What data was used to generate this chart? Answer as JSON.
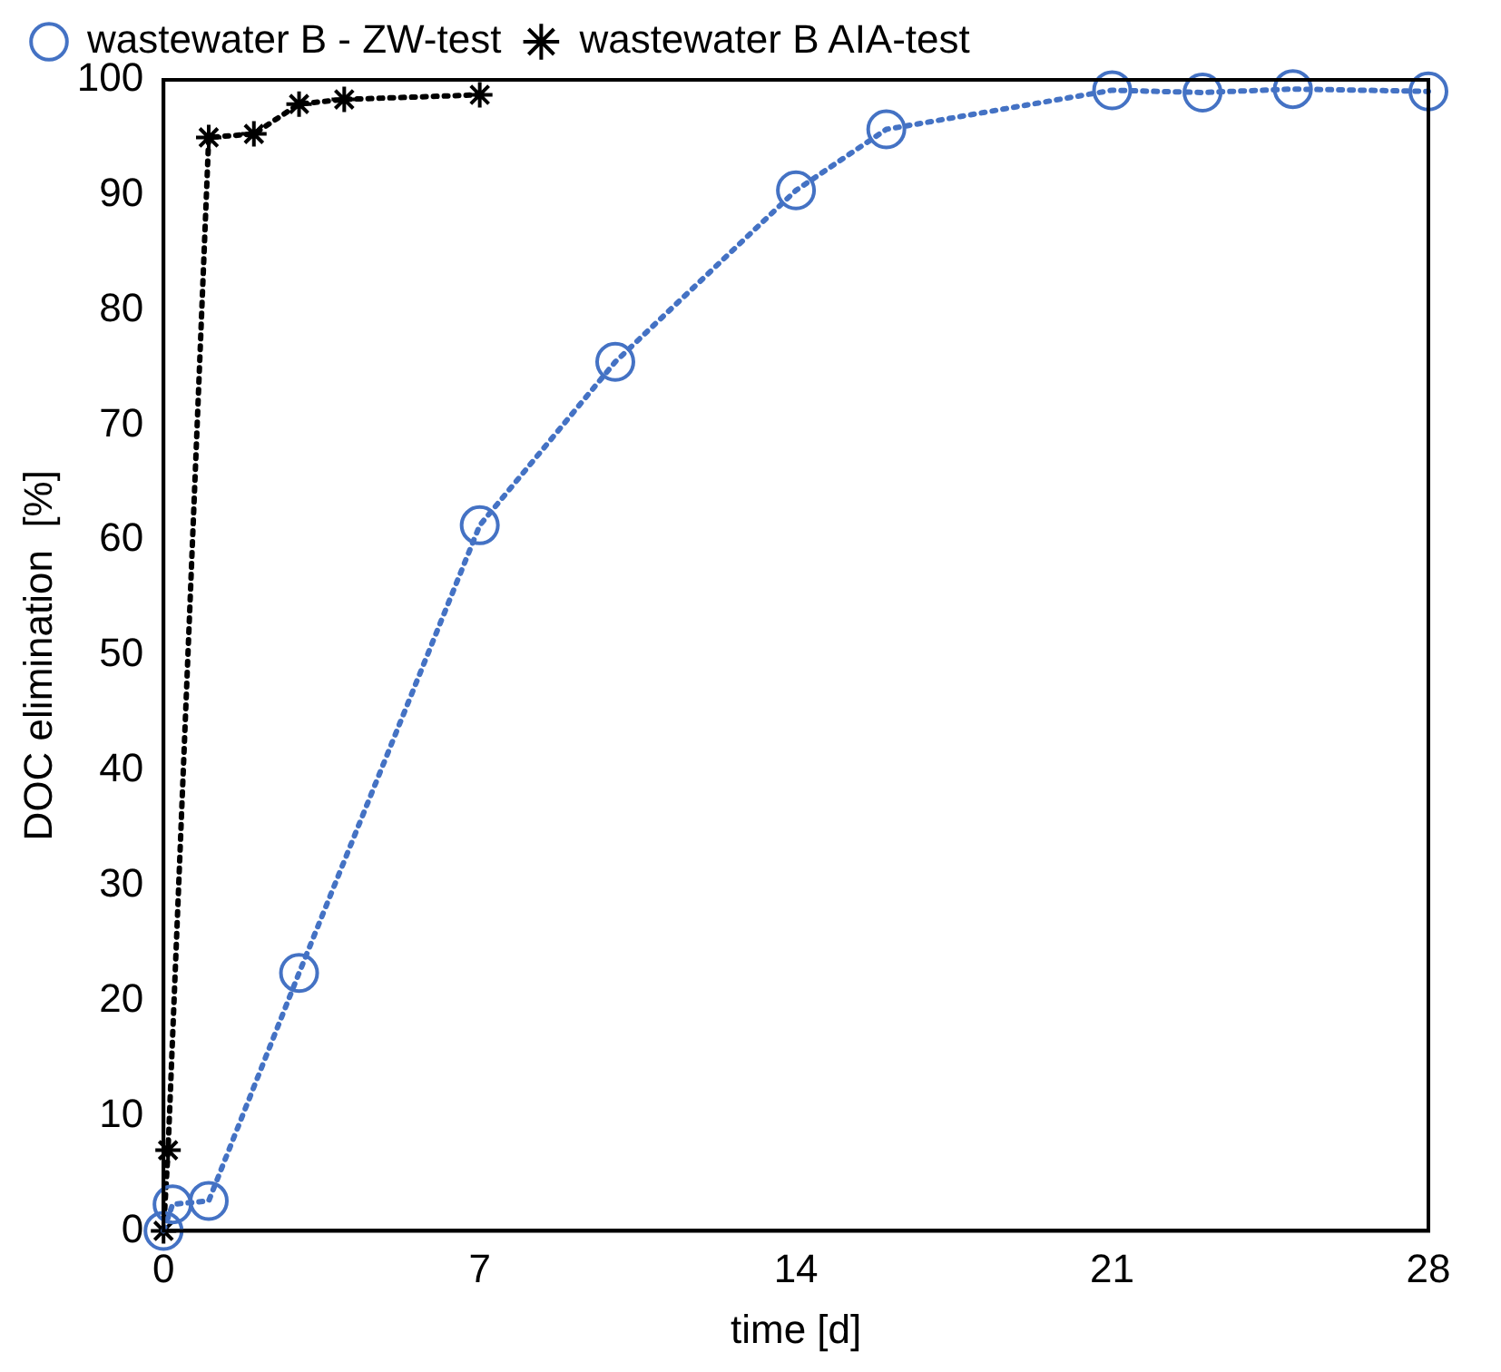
{
  "chart_data": {
    "type": "line",
    "xlabel": "time [d]",
    "ylabel": "DOC elimination  [%]",
    "xlim": [
      0,
      28
    ],
    "xticks": [
      0,
      7,
      14,
      21,
      28
    ],
    "ylim": [
      0,
      100
    ],
    "yticks": [
      0,
      10,
      20,
      30,
      40,
      50,
      60,
      70,
      80,
      90,
      100
    ],
    "grid": false,
    "legend": "top",
    "line_style": "dotted",
    "series": [
      {
        "name": "wastewater B - ZW-test",
        "color": "#4472c4",
        "marker": "circle",
        "x": [
          0,
          0.2,
          1,
          3,
          7,
          10,
          14,
          16,
          21,
          23,
          25,
          28
        ],
        "values": [
          0,
          2.3,
          2.6,
          22.4,
          61.3,
          75.5,
          90.4,
          95.7,
          99.1,
          98.9,
          99.2,
          99
        ]
      },
      {
        "name": "wastewater B AIA-test",
        "color": "#000000",
        "marker": "cross",
        "x": [
          0,
          0.1,
          1,
          2,
          3,
          4,
          7
        ],
        "values": [
          0,
          7,
          95,
          95.3,
          97.9,
          98.3,
          98.7
        ]
      }
    ]
  }
}
